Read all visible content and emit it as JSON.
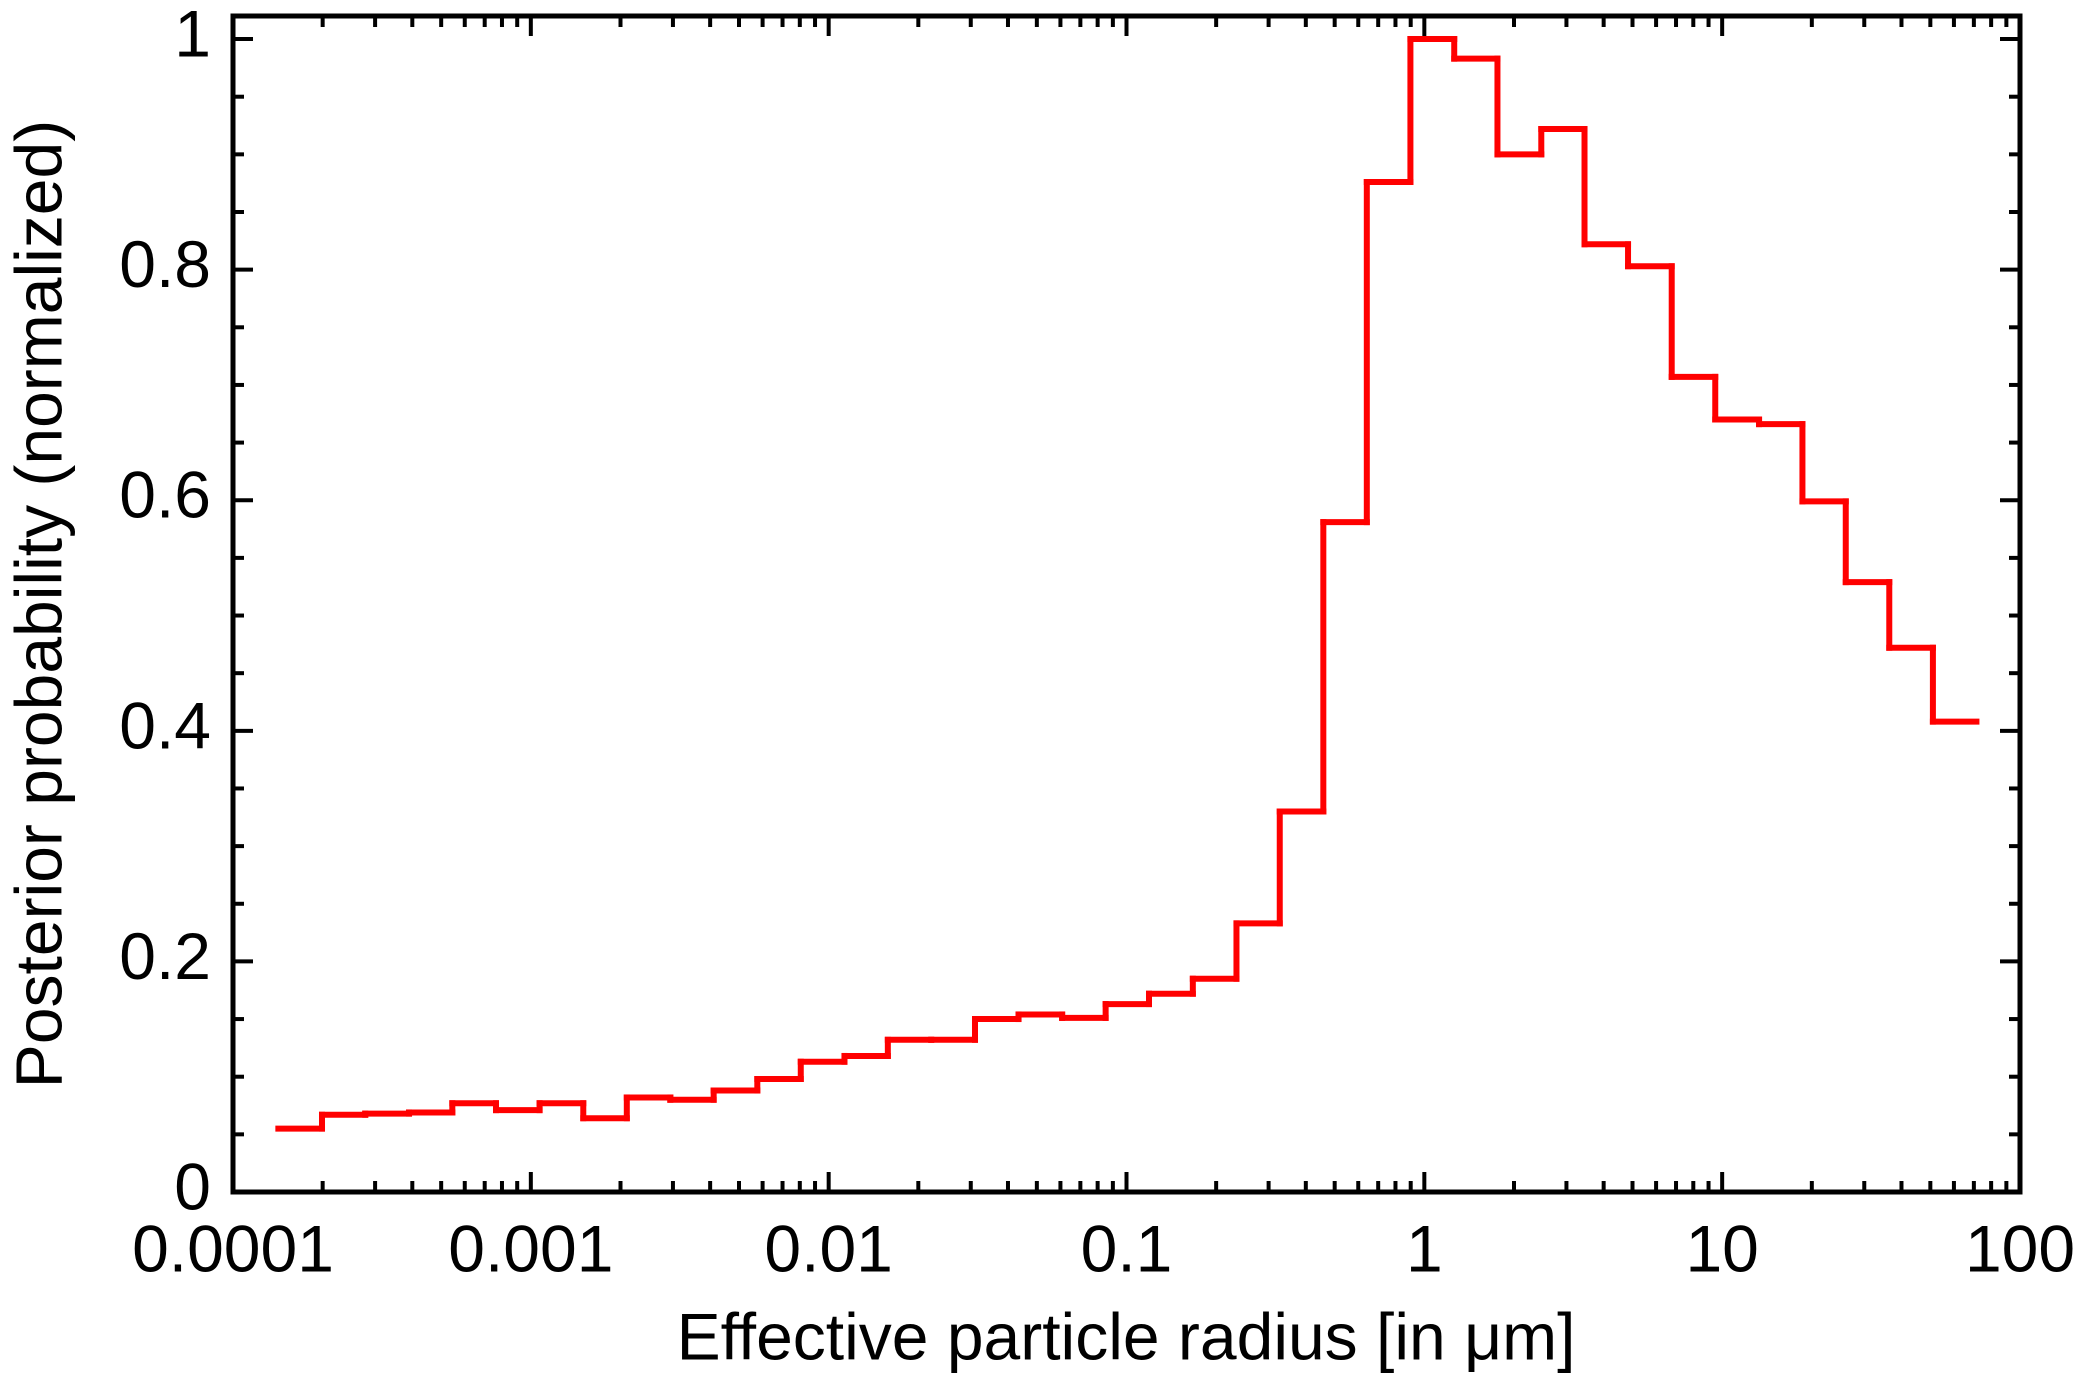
{
  "chart_data": {
    "type": "histogram",
    "x_label": "Effective particle radius [in μm]",
    "y_label": "Posterior probability (normalized)",
    "x_log": true,
    "color": "#ff0000",
    "bins": [
      0.000142,
      0.000199,
      0.000278,
      0.00039,
      0.000545,
      0.000764,
      0.00107,
      0.0015,
      0.0021,
      0.00294,
      0.00411,
      0.00576,
      0.00806,
      0.0113,
      0.0158,
      0.0221,
      0.031,
      0.0434,
      0.0608,
      0.0851,
      0.119,
      0.167,
      0.234,
      0.327,
      0.458,
      0.641,
      0.898,
      1.26,
      1.76,
      2.47,
      3.45,
      4.83,
      6.77,
      9.48,
      13.3,
      18.6,
      26.0,
      36.4,
      51.0,
      71.4
    ],
    "values": [
      0.055,
      0.067,
      0.068,
      0.069,
      0.077,
      0.071,
      0.077,
      0.064,
      0.082,
      0.08,
      0.088,
      0.098,
      0.113,
      0.118,
      0.132,
      0.132,
      0.15,
      0.154,
      0.151,
      0.163,
      0.172,
      0.185,
      0.233,
      0.33,
      0.581,
      0.876,
      1.0,
      0.983,
      0.9,
      0.922,
      0.822,
      0.803,
      0.707,
      0.67,
      0.666,
      0.599,
      0.529,
      0.472,
      0.408
    ],
    "xlim": [
      0.0001,
      100
    ],
    "ylim": [
      0,
      1.02
    ],
    "xticks": [
      0.0001,
      0.001,
      0.01,
      0.1,
      1,
      10,
      100
    ],
    "yticks": [
      0,
      0.2,
      0.4,
      0.6,
      0.8,
      1
    ],
    "grid": false
  }
}
